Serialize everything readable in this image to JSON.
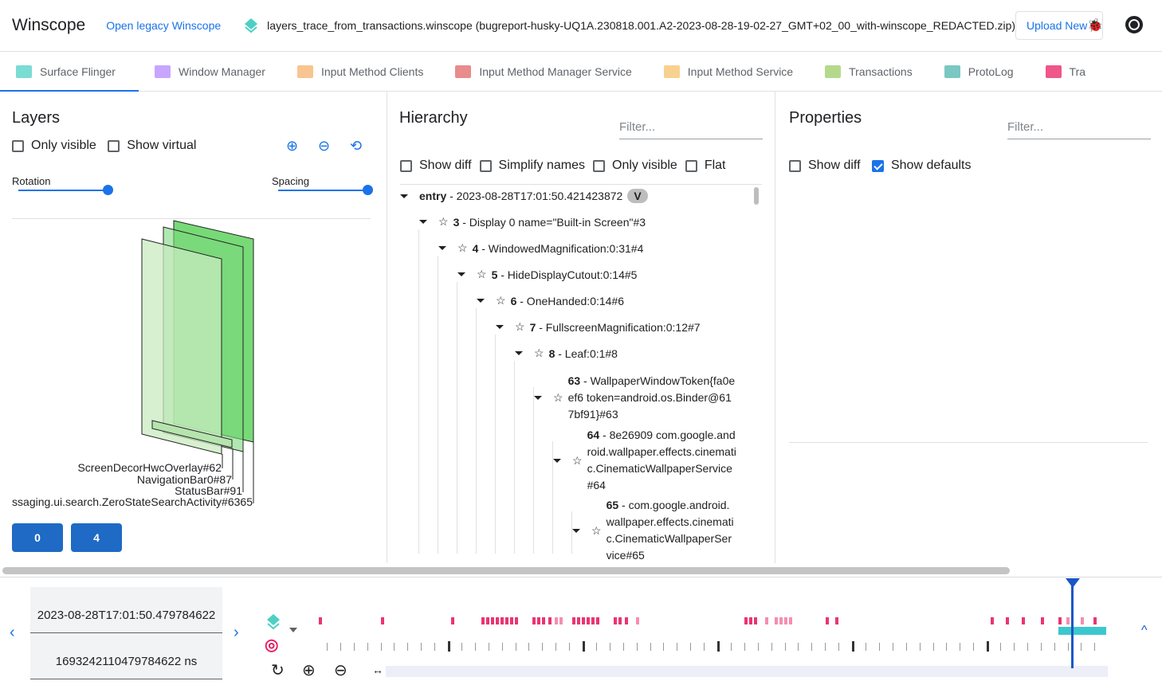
{
  "header": {
    "title": "Winscope",
    "legacy_link": "Open legacy Winscope",
    "trace_file": "layers_trace_from_transactions.winscope (bugreport-husky-UQ1A.230818.001.A2-2023-08-28-19-02-27_GMT+02_00_with-winscope_REDACTED.zip)",
    "upload_label": "Upload New"
  },
  "tabs": [
    {
      "label": "Surface Flinger",
      "color": "#4dd0c4",
      "active": true
    },
    {
      "label": "Window Manager",
      "color": "#b388ff"
    },
    {
      "label": "Input Method Clients",
      "color": "#f6b26b"
    },
    {
      "label": "Input Method Manager Service",
      "color": "#e06666"
    },
    {
      "label": "Input Method Service",
      "color": "#f6c26b"
    },
    {
      "label": "Transactions",
      "color": "#9ccc65"
    },
    {
      "label": "ProtoLog",
      "color": "#4db6ac"
    },
    {
      "label": "Tra",
      "color": "#e91e63"
    }
  ],
  "layers": {
    "title": "Layers",
    "only_visible": "Only visible",
    "show_virtual": "Show virtual",
    "rotation": "Rotation",
    "spacing": "Spacing",
    "rotation_value": 1.0,
    "spacing_value": 1.0,
    "labels": [
      "ScreenDecorHwcOverlay#62",
      "NavigationBar0#87",
      "StatusBar#91",
      "ssaging.ui.search.ZeroStateSearchActivity#6365"
    ],
    "display_buttons": [
      "0",
      "4"
    ]
  },
  "hierarchy": {
    "title": "Hierarchy",
    "filter_placeholder": "Filter...",
    "options": [
      "Show diff",
      "Simplify names",
      "Only visible",
      "Flat"
    ],
    "rows": [
      {
        "id": "entry",
        "name": " - 2023-08-28T17:01:50.421423872",
        "badge": "V"
      },
      {
        "id": "3",
        "name": " - Display 0 name=\"Built-in Screen\"#3"
      },
      {
        "id": "4",
        "name": " - WindowedMagnification:0:31#4"
      },
      {
        "id": "5",
        "name": " - HideDisplayCutout:0:14#5"
      },
      {
        "id": "6",
        "name": " - OneHanded:0:14#6"
      },
      {
        "id": "7",
        "name": " - FullscreenMagnification:0:12#7"
      },
      {
        "id": "8",
        "name": " - Leaf:0:1#8"
      },
      {
        "id": "63",
        "name": " - WallpaperWindowToken{fa0eef6 token=android.os.Binder@617bf91}#63"
      },
      {
        "id": "64",
        "name": " - 8e26909 com.google.android.wallpaper.effects.cinematic.CinematicWallpaperService#64"
      },
      {
        "id": "65",
        "name": " - com.google.android.wallpaper.effects.cinematic.CinematicWallpaperService#65"
      }
    ]
  },
  "properties": {
    "title": "Properties",
    "filter_placeholder": "Filter...",
    "show_diff": "Show diff",
    "show_defaults": "Show defaults",
    "show_defaults_checked": true
  },
  "timeline": {
    "timestamp": "2023-08-28T17:01:50.479784622",
    "timestamp_ns": "1693242110479784622 ns",
    "accent": "#1a56c8",
    "transaction_color": "#e91e63",
    "layers_color": "#4dd0c4"
  }
}
